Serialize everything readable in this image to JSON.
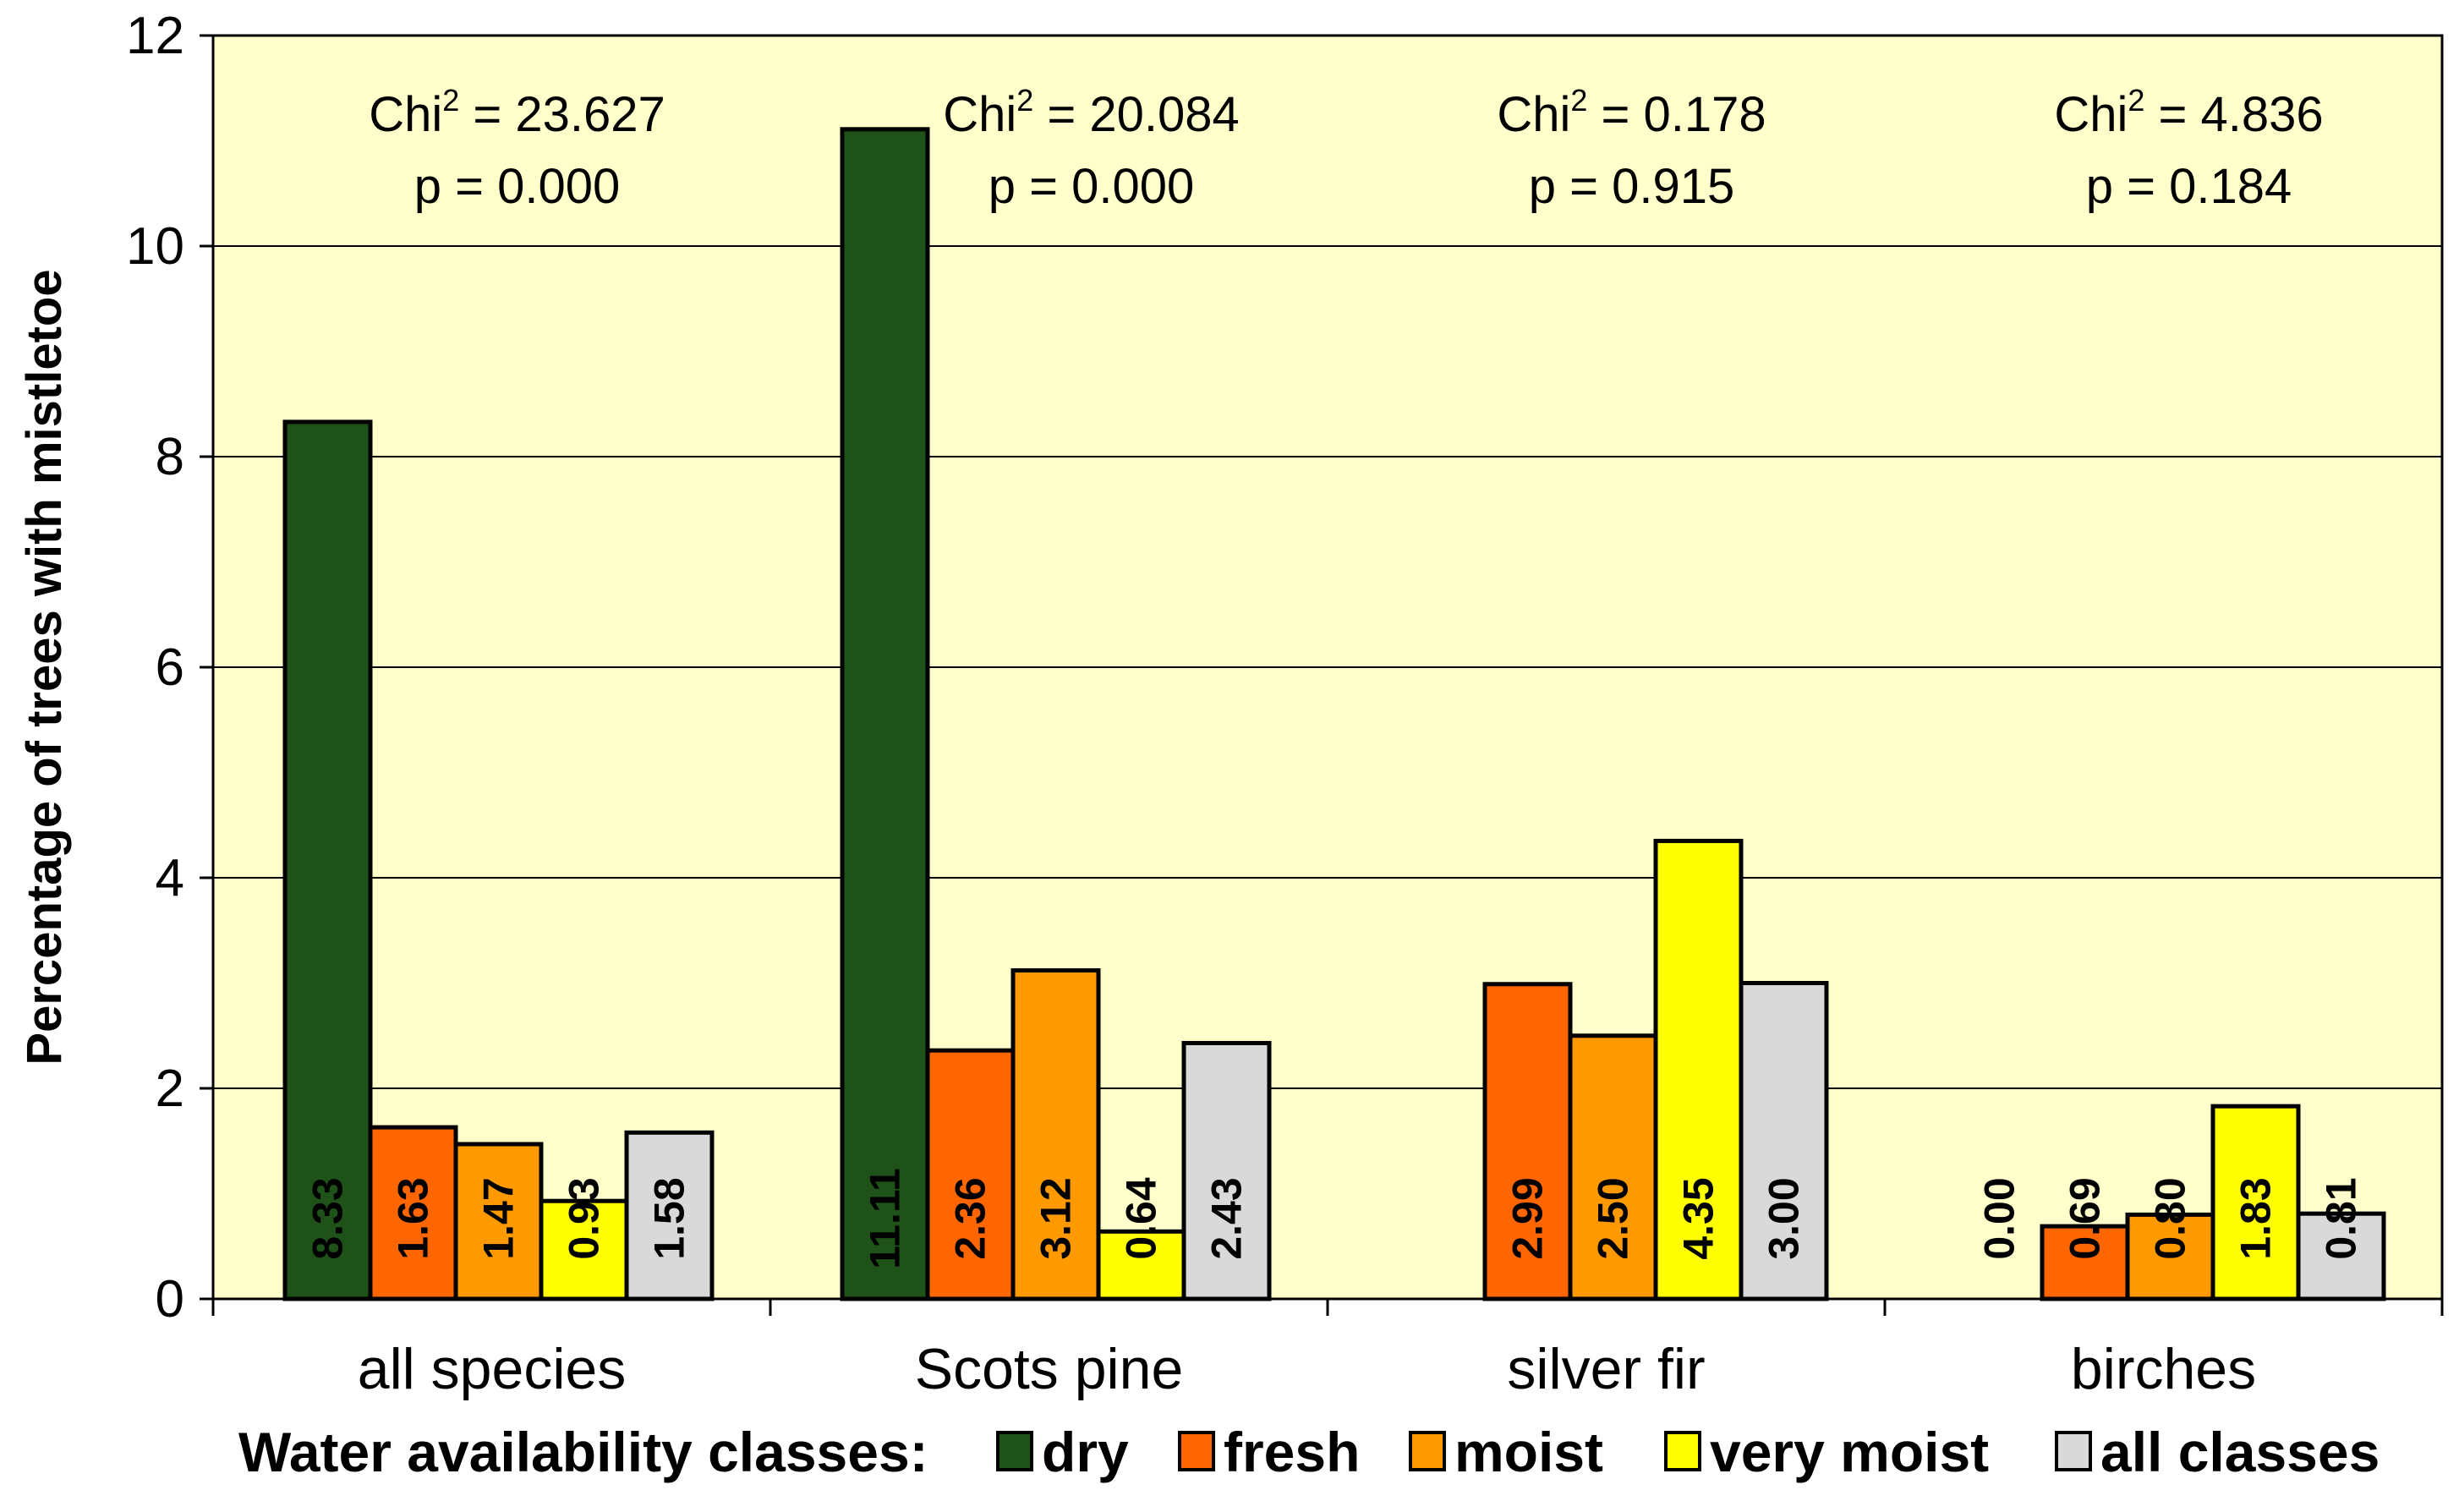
{
  "chart_data": {
    "type": "bar",
    "title": "",
    "xlabel": "",
    "ylabel": "Percentage of trees with mistletoe",
    "ylim": [
      0,
      12
    ],
    "yticks": [
      0,
      2,
      4,
      6,
      8,
      10,
      12
    ],
    "grid": true,
    "categories": [
      "all species",
      "Scots pine",
      "silver fir",
      "birches"
    ],
    "series": [
      {
        "name": "dry",
        "color": "#1E5218",
        "values": [
          8.33,
          11.11,
          null,
          0.0
        ],
        "labels": [
          "8.33",
          "11.11",
          "",
          "0.00"
        ]
      },
      {
        "name": "fresh",
        "color": "#FF6600",
        "values": [
          1.63,
          2.36,
          2.99,
          0.69
        ],
        "labels": [
          "1.63",
          "2.36",
          "2.99",
          "0.69"
        ]
      },
      {
        "name": "moist",
        "color": "#FF9900",
        "values": [
          1.47,
          3.12,
          2.5,
          0.8
        ],
        "labels": [
          "1.47",
          "3.12",
          "2.50",
          "0.80"
        ]
      },
      {
        "name": "very moist",
        "color": "#FFFF00",
        "values": [
          0.93,
          0.64,
          4.35,
          1.83
        ],
        "labels": [
          "0.93",
          "0.64",
          "4.35",
          "1.83"
        ]
      },
      {
        "name": "all classes",
        "color": "#D9D9D9",
        "values": [
          1.58,
          2.43,
          3.0,
          0.81
        ],
        "labels": [
          "1.58",
          "2.43",
          "3.00",
          "0.81"
        ]
      }
    ],
    "annotations": [
      {
        "chi_label": "Chi",
        "sup": "2",
        "chi_value": " = 23.627",
        "p": "p = 0.000"
      },
      {
        "chi_label": "Chi",
        "sup": "2",
        "chi_value": " = 20.084",
        "p": "p = 0.000"
      },
      {
        "chi_label": "Chi",
        "sup": "2",
        "chi_value": " = 0.178",
        "p": "p = 0.915"
      },
      {
        "chi_label": "Chi",
        "sup": "2",
        "chi_value": " = 4.836",
        "p": "p = 0.184"
      }
    ],
    "legend": {
      "title": "Water availability classes:",
      "position": "bottom",
      "items": [
        "dry",
        "fresh",
        "moist",
        "very moist",
        "all classes"
      ]
    },
    "plot_background": "#FFFFCC"
  }
}
